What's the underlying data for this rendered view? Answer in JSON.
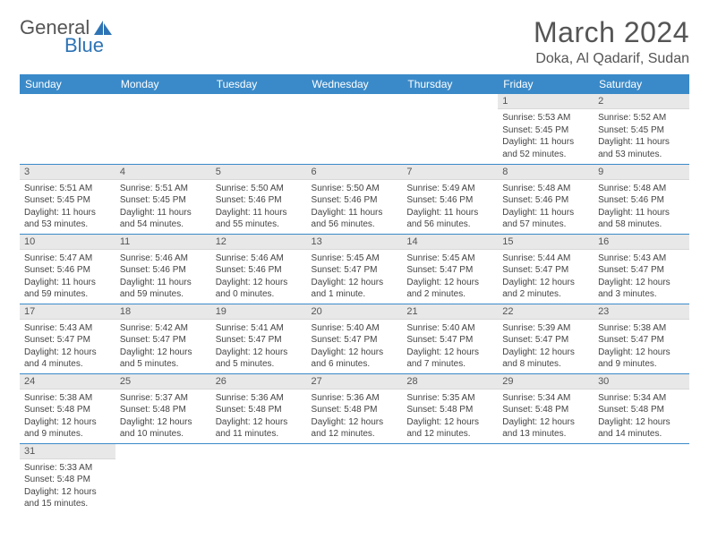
{
  "logo": {
    "text1": "General",
    "text2": "Blue"
  },
  "title": "March 2024",
  "location": "Doka, Al Qadarif, Sudan",
  "colors": {
    "header_bg": "#3a8ac9",
    "header_fg": "#ffffff",
    "daynum_bg": "#e8e8e8",
    "row_border": "#3a8ac9",
    "text": "#444444"
  },
  "weekdays": [
    "Sunday",
    "Monday",
    "Tuesday",
    "Wednesday",
    "Thursday",
    "Friday",
    "Saturday"
  ],
  "weeks": [
    [
      null,
      null,
      null,
      null,
      null,
      {
        "n": "1",
        "sr": "Sunrise: 5:53 AM",
        "ss": "Sunset: 5:45 PM",
        "dl": "Daylight: 11 hours and 52 minutes."
      },
      {
        "n": "2",
        "sr": "Sunrise: 5:52 AM",
        "ss": "Sunset: 5:45 PM",
        "dl": "Daylight: 11 hours and 53 minutes."
      }
    ],
    [
      {
        "n": "3",
        "sr": "Sunrise: 5:51 AM",
        "ss": "Sunset: 5:45 PM",
        "dl": "Daylight: 11 hours and 53 minutes."
      },
      {
        "n": "4",
        "sr": "Sunrise: 5:51 AM",
        "ss": "Sunset: 5:45 PM",
        "dl": "Daylight: 11 hours and 54 minutes."
      },
      {
        "n": "5",
        "sr": "Sunrise: 5:50 AM",
        "ss": "Sunset: 5:46 PM",
        "dl": "Daylight: 11 hours and 55 minutes."
      },
      {
        "n": "6",
        "sr": "Sunrise: 5:50 AM",
        "ss": "Sunset: 5:46 PM",
        "dl": "Daylight: 11 hours and 56 minutes."
      },
      {
        "n": "7",
        "sr": "Sunrise: 5:49 AM",
        "ss": "Sunset: 5:46 PM",
        "dl": "Daylight: 11 hours and 56 minutes."
      },
      {
        "n": "8",
        "sr": "Sunrise: 5:48 AM",
        "ss": "Sunset: 5:46 PM",
        "dl": "Daylight: 11 hours and 57 minutes."
      },
      {
        "n": "9",
        "sr": "Sunrise: 5:48 AM",
        "ss": "Sunset: 5:46 PM",
        "dl": "Daylight: 11 hours and 58 minutes."
      }
    ],
    [
      {
        "n": "10",
        "sr": "Sunrise: 5:47 AM",
        "ss": "Sunset: 5:46 PM",
        "dl": "Daylight: 11 hours and 59 minutes."
      },
      {
        "n": "11",
        "sr": "Sunrise: 5:46 AM",
        "ss": "Sunset: 5:46 PM",
        "dl": "Daylight: 11 hours and 59 minutes."
      },
      {
        "n": "12",
        "sr": "Sunrise: 5:46 AM",
        "ss": "Sunset: 5:46 PM",
        "dl": "Daylight: 12 hours and 0 minutes."
      },
      {
        "n": "13",
        "sr": "Sunrise: 5:45 AM",
        "ss": "Sunset: 5:47 PM",
        "dl": "Daylight: 12 hours and 1 minute."
      },
      {
        "n": "14",
        "sr": "Sunrise: 5:45 AM",
        "ss": "Sunset: 5:47 PM",
        "dl": "Daylight: 12 hours and 2 minutes."
      },
      {
        "n": "15",
        "sr": "Sunrise: 5:44 AM",
        "ss": "Sunset: 5:47 PM",
        "dl": "Daylight: 12 hours and 2 minutes."
      },
      {
        "n": "16",
        "sr": "Sunrise: 5:43 AM",
        "ss": "Sunset: 5:47 PM",
        "dl": "Daylight: 12 hours and 3 minutes."
      }
    ],
    [
      {
        "n": "17",
        "sr": "Sunrise: 5:43 AM",
        "ss": "Sunset: 5:47 PM",
        "dl": "Daylight: 12 hours and 4 minutes."
      },
      {
        "n": "18",
        "sr": "Sunrise: 5:42 AM",
        "ss": "Sunset: 5:47 PM",
        "dl": "Daylight: 12 hours and 5 minutes."
      },
      {
        "n": "19",
        "sr": "Sunrise: 5:41 AM",
        "ss": "Sunset: 5:47 PM",
        "dl": "Daylight: 12 hours and 5 minutes."
      },
      {
        "n": "20",
        "sr": "Sunrise: 5:40 AM",
        "ss": "Sunset: 5:47 PM",
        "dl": "Daylight: 12 hours and 6 minutes."
      },
      {
        "n": "21",
        "sr": "Sunrise: 5:40 AM",
        "ss": "Sunset: 5:47 PM",
        "dl": "Daylight: 12 hours and 7 minutes."
      },
      {
        "n": "22",
        "sr": "Sunrise: 5:39 AM",
        "ss": "Sunset: 5:47 PM",
        "dl": "Daylight: 12 hours and 8 minutes."
      },
      {
        "n": "23",
        "sr": "Sunrise: 5:38 AM",
        "ss": "Sunset: 5:47 PM",
        "dl": "Daylight: 12 hours and 9 minutes."
      }
    ],
    [
      {
        "n": "24",
        "sr": "Sunrise: 5:38 AM",
        "ss": "Sunset: 5:48 PM",
        "dl": "Daylight: 12 hours and 9 minutes."
      },
      {
        "n": "25",
        "sr": "Sunrise: 5:37 AM",
        "ss": "Sunset: 5:48 PM",
        "dl": "Daylight: 12 hours and 10 minutes."
      },
      {
        "n": "26",
        "sr": "Sunrise: 5:36 AM",
        "ss": "Sunset: 5:48 PM",
        "dl": "Daylight: 12 hours and 11 minutes."
      },
      {
        "n": "27",
        "sr": "Sunrise: 5:36 AM",
        "ss": "Sunset: 5:48 PM",
        "dl": "Daylight: 12 hours and 12 minutes."
      },
      {
        "n": "28",
        "sr": "Sunrise: 5:35 AM",
        "ss": "Sunset: 5:48 PM",
        "dl": "Daylight: 12 hours and 12 minutes."
      },
      {
        "n": "29",
        "sr": "Sunrise: 5:34 AM",
        "ss": "Sunset: 5:48 PM",
        "dl": "Daylight: 12 hours and 13 minutes."
      },
      {
        "n": "30",
        "sr": "Sunrise: 5:34 AM",
        "ss": "Sunset: 5:48 PM",
        "dl": "Daylight: 12 hours and 14 minutes."
      }
    ],
    [
      {
        "n": "31",
        "sr": "Sunrise: 5:33 AM",
        "ss": "Sunset: 5:48 PM",
        "dl": "Daylight: 12 hours and 15 minutes."
      },
      null,
      null,
      null,
      null,
      null,
      null
    ]
  ]
}
